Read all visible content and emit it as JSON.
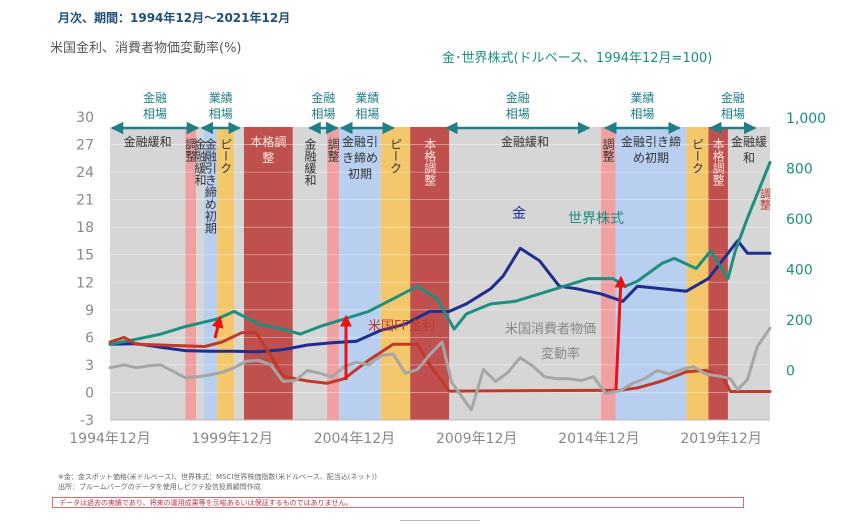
{
  "header": {
    "period": "月次、期間：1994年12月～2021年12月",
    "left_axis_title": "米国金利、消費者物価変動率(%)",
    "right_axis_title": "金･世界株式(ドルベース、1994年12月=100)"
  },
  "footnotes": {
    "note1": "※金：金スポット価格(米ドルベース)、世界株式：MSCI世界株価指数(米ドルベース、配当込(ネット))",
    "note2": "出所：ブルームバーグのデータを使用しピクテ投信投資顧問作成",
    "disclaimer": "データは過去の実績であり、将来の運用成果等を示唆あるいは保証するものではありません。"
  },
  "colors": {
    "kinyu_kanwa": "#d6d6d6",
    "chosei_light": "#f0a0a0",
    "honkaku_chosei": "#c0504d",
    "hikishime": "#b8cff0",
    "peak": "#f4c86a",
    "gold": "#1f2d8f",
    "world_equity": "#1d8f80",
    "ff_rate": "#c0392b",
    "cpi": "#a6a6a6",
    "arrow_teal": "#1f7f87",
    "arrow_red": "#ee1111",
    "phase_label": "#1f7f87"
  },
  "chart_data": {
    "type": "line",
    "title": "",
    "x_axis": {
      "range": [
        "1994-12",
        "2021-12"
      ],
      "tick_labels": [
        "1994年12月",
        "1999年12月",
        "2004年12月",
        "2009年12月",
        "2014年12月",
        "2019年12月"
      ]
    },
    "left_axis": {
      "range": [
        -3,
        30
      ],
      "tick_labels": [
        "30",
        "27",
        "24",
        "21",
        "18",
        "15",
        "12",
        "9",
        "6",
        "3",
        "0",
        "-3"
      ]
    },
    "right_axis": {
      "range": [
        -200,
        1000
      ],
      "tick_labels": [
        "1,000",
        "800",
        "600",
        "400",
        "200",
        "0"
      ]
    },
    "phase_labels": [
      {
        "text": "金融相場",
        "start": 1994.92,
        "end": 1998.6
      },
      {
        "text": "業績相場",
        "start": 1998.6,
        "end": 2000.3
      },
      {
        "text": "金融相場",
        "start": 2003.0,
        "end": 2004.3
      },
      {
        "text": "業績相場",
        "start": 2004.3,
        "end": 2006.6
      },
      {
        "text": "金融相場",
        "start": 2008.6,
        "end": 2014.6
      },
      {
        "text": "業績相場",
        "start": 2015.1,
        "end": 2018.3
      },
      {
        "text": "金融相場",
        "start": 2019.4,
        "end": 2021.4
      }
    ],
    "regimes": [
      {
        "kind": "kinyu_kanwa",
        "start": 1994.92,
        "end": 1998.0,
        "label": "金融緩和"
      },
      {
        "kind": "chosei_light",
        "start": 1998.0,
        "end": 1998.45,
        "label": "調整"
      },
      {
        "kind": "kinyu_kanwa",
        "start": 1998.45,
        "end": 1998.75,
        "label": "金融緩和"
      },
      {
        "kind": "hikishime",
        "start": 1998.75,
        "end": 1999.3,
        "label": "金融引き締め初期"
      },
      {
        "kind": "peak",
        "start": 1999.3,
        "end": 2000.0,
        "label": "ピーク"
      },
      {
        "kind": "kinyu_kanwa",
        "start": 2000.0,
        "end": 2000.4,
        "label": ""
      },
      {
        "kind": "honkaku_chosei",
        "start": 2000.4,
        "end": 2002.4,
        "label": "本格調整"
      },
      {
        "kind": "kinyu_kanwa",
        "start": 2002.4,
        "end": 2003.8,
        "label": "金融緩和"
      },
      {
        "kind": "chosei_light",
        "start": 2003.8,
        "end": 2004.3,
        "label": "調整"
      },
      {
        "kind": "hikishime",
        "start": 2004.3,
        "end": 2006.0,
        "label": "金融引き締め初期"
      },
      {
        "kind": "peak",
        "start": 2006.0,
        "end": 2007.2,
        "label": "ピーク"
      },
      {
        "kind": "honkaku_chosei",
        "start": 2007.2,
        "end": 2008.8,
        "label": "本格調整"
      },
      {
        "kind": "kinyu_kanwa",
        "start": 2008.8,
        "end": 2015.0,
        "label": "金融緩和"
      },
      {
        "kind": "chosei_light",
        "start": 2015.0,
        "end": 2015.6,
        "label": "調整"
      },
      {
        "kind": "hikishime",
        "start": 2015.6,
        "end": 2018.5,
        "label": "金融引き締め初期"
      },
      {
        "kind": "peak",
        "start": 2018.5,
        "end": 2019.4,
        "label": "ピーク"
      },
      {
        "kind": "honkaku_chosei",
        "start": 2019.4,
        "end": 2020.2,
        "label": "本格調整"
      },
      {
        "kind": "kinyu_kanwa",
        "start": 2020.2,
        "end": 2021.92,
        "label": "金融緩和"
      }
    ],
    "series": [
      {
        "name": "金",
        "axis": "right",
        "x": [
          1994.92,
          1996.0,
          1997.0,
          1998.0,
          1999.0,
          2000.0,
          2001.0,
          2002.0,
          2003.0,
          2004.0,
          2005.0,
          2006.0,
          2007.0,
          2008.0,
          2008.8,
          2009.5,
          2010.5,
          2011.0,
          2011.7,
          2012.5,
          2013.3,
          2014.0,
          2015.0,
          2015.9,
          2016.5,
          2017.5,
          2018.5,
          2019.4,
          2020.6,
          2021.0,
          2021.92
        ],
        "values": [
          100,
          102,
          88,
          75,
          72,
          72,
          70,
          79,
          97,
          106,
          112,
          155,
          180,
          230,
          230,
          260,
          320,
          370,
          480,
          430,
          330,
          320,
          300,
          270,
          330,
          320,
          310,
          360,
          510,
          460,
          460
        ]
      },
      {
        "name": "世界株式",
        "axis": "right",
        "x": [
          1994.92,
          1996.0,
          1997.0,
          1998.0,
          1999.3,
          2000.0,
          2001.0,
          2002.0,
          2002.7,
          2003.5,
          2004.5,
          2005.5,
          2006.5,
          2007.5,
          2008.3,
          2009.0,
          2009.5,
          2010.5,
          2011.5,
          2012.5,
          2013.5,
          2014.5,
          2015.5,
          2016.0,
          2016.5,
          2017.5,
          2018.0,
          2018.9,
          2019.5,
          2020.2,
          2020.5,
          2021.0,
          2021.92
        ],
        "values": [
          100,
          120,
          140,
          170,
          200,
          230,
          180,
          160,
          140,
          170,
          200,
          230,
          280,
          330,
          280,
          160,
          220,
          260,
          270,
          300,
          330,
          360,
          360,
          330,
          350,
          420,
          440,
          400,
          470,
          360,
          470,
          600,
          820
        ]
      },
      {
        "name": "米国FF金利",
        "axis": "left",
        "x": [
          1994.92,
          1995.5,
          1996.0,
          1998.8,
          1999.5,
          2000.3,
          2000.9,
          2001.5,
          2002.0,
          2003.0,
          2003.8,
          2004.5,
          2005.5,
          2006.5,
          2007.5,
          2008.0,
          2008.8,
          2015.8,
          2016.5,
          2017.5,
          2018.5,
          2019.3,
          2020.0,
          2020.3,
          2021.92
        ],
        "values": [
          5.5,
          6.0,
          5.25,
          5.0,
          5.5,
          6.5,
          6.5,
          4.0,
          1.75,
          1.25,
          1.0,
          1.5,
          3.5,
          5.25,
          5.25,
          3.0,
          0.15,
          0.25,
          0.5,
          1.25,
          2.25,
          2.4,
          1.6,
          0.1,
          0.1
        ]
      },
      {
        "name": "米国消費者物価変動率",
        "axis": "left",
        "x": [
          1994.92,
          1995.5,
          1996.0,
          1996.5,
          1997.0,
          1997.5,
          1998.0,
          1998.5,
          1999.0,
          1999.5,
          2000.0,
          2000.5,
          2001.0,
          2001.5,
          2002.0,
          2002.5,
          2003.0,
          2003.5,
          2004.0,
          2004.5,
          2005.0,
          2005.5,
          2006.0,
          2006.5,
          2007.0,
          2007.5,
          2008.0,
          2008.5,
          2008.9,
          2009.3,
          2009.7,
          2010.2,
          2010.7,
          2011.2,
          2011.7,
          2012.2,
          2012.7,
          2013.2,
          2013.7,
          2014.2,
          2014.7,
          2015.2,
          2015.8,
          2016.3,
          2016.8,
          2017.3,
          2017.8,
          2018.3,
          2018.8,
          2019.3,
          2019.8,
          2020.3,
          2020.6,
          2021.0,
          2021.4,
          2021.92
        ],
        "values": [
          2.7,
          3.0,
          2.7,
          2.9,
          3.0,
          2.3,
          1.6,
          1.7,
          1.9,
          2.2,
          2.7,
          3.4,
          3.5,
          3.0,
          1.2,
          1.3,
          2.4,
          2.1,
          1.7,
          2.8,
          3.3,
          3.0,
          4.0,
          4.2,
          2.1,
          2.5,
          4.1,
          5.5,
          1.1,
          -0.4,
          -1.9,
          2.5,
          1.2,
          2.2,
          3.8,
          2.9,
          1.7,
          1.5,
          1.5,
          1.3,
          1.7,
          -0.1,
          0.2,
          1.0,
          1.5,
          2.4,
          2.0,
          2.5,
          2.8,
          2.0,
          1.8,
          1.5,
          0.3,
          1.4,
          5.0,
          7.0
        ]
      }
    ],
    "annotations": [
      {
        "text": "金"
      },
      {
        "text": "世界株式"
      },
      {
        "text": "米国FF金利"
      },
      {
        "text": "米国消費者物価変動率"
      },
      {
        "text": "調整"
      }
    ]
  }
}
